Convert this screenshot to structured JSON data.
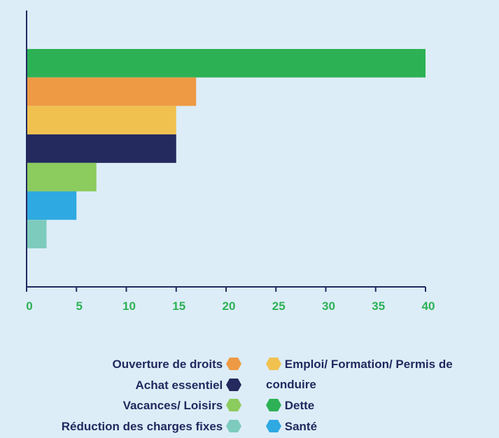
{
  "chart_data": {
    "type": "bar",
    "categories": [
      "Dette",
      "Ouverture de droits",
      "Emploi/ Formation/ Permis de conduire",
      "Achat essentiel",
      "Vacances/ Loisirs",
      "Santé",
      "Réduction des charges fixes"
    ],
    "values": [
      40,
      17,
      15,
      15,
      7,
      5,
      2
    ],
    "colors": [
      "#2db155",
      "#ee9a45",
      "#f1c150",
      "#24295e",
      "#8ccb5e",
      "#2fa9e1",
      "#7dcbbd"
    ],
    "xlim": [
      0,
      40
    ],
    "xticks": [
      0,
      5,
      10,
      15,
      20,
      25,
      30,
      35,
      40
    ]
  }
}
